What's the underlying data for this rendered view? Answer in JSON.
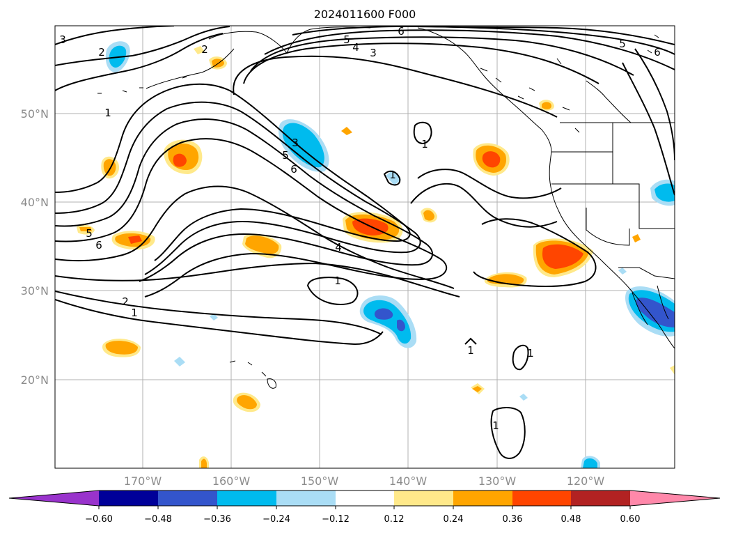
{
  "map": {
    "title": "2024011600 F000",
    "lat_labels": [
      "20°N",
      "30°N",
      "40°N",
      "50°N"
    ],
    "lon_labels": [
      "170°W",
      "160°W",
      "150°W",
      "140°W",
      "130°W",
      "120°W"
    ],
    "contour_labels": [
      "1",
      "2",
      "3",
      "4",
      "5",
      "6"
    ],
    "colors": {
      "dark_purple": "#9933cc",
      "navy": "#000099",
      "royal_blue": "#3355cc",
      "deep_sky_blue": "#00bbee",
      "light_blue": "#aaddf5",
      "white": "#ffffff",
      "light_yellow": "#ffe98a",
      "orange": "#ffa500",
      "orange_red": "#ff4500",
      "firebrick": "#b22222",
      "pink": "#ff88aa"
    }
  },
  "colorbar": {
    "ticks": [
      "−0.60",
      "−0.48",
      "−0.36",
      "−0.24",
      "−0.12",
      "0.12",
      "0.24",
      "0.36",
      "0.48",
      "0.60"
    ],
    "colors": [
      "#9933cc",
      "#000099",
      "#3355cc",
      "#00bbee",
      "#aaddf5",
      "#ffffff",
      "#ffe98a",
      "#ffa500",
      "#ff4500",
      "#b22222",
      "#ff88aa"
    ]
  }
}
